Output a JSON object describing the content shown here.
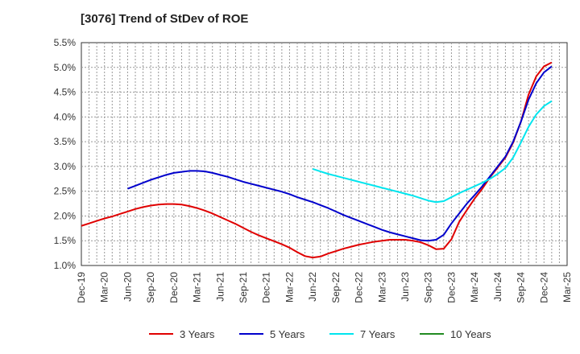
{
  "chart_data": {
    "type": "line",
    "title": "[3076]  Trend of StDev of ROE",
    "xlabel": "",
    "ylabel": "",
    "x_ticks": [
      "Dec-19",
      "Mar-20",
      "Jun-20",
      "Sep-20",
      "Dec-20",
      "Mar-21",
      "Jun-21",
      "Sep-21",
      "Dec-21",
      "Mar-22",
      "Jun-22",
      "Sep-22",
      "Dec-22",
      "Mar-23",
      "Jun-23",
      "Sep-23",
      "Dec-23",
      "Mar-24",
      "Jun-24",
      "Sep-24",
      "Dec-24",
      "Mar-25"
    ],
    "y_ticks": [
      "1.0%",
      "1.5%",
      "2.0%",
      "2.5%",
      "3.0%",
      "3.5%",
      "4.0%",
      "4.5%",
      "5.0%",
      "5.5%"
    ],
    "ylim": [
      1.0,
      5.5
    ],
    "grid": true,
    "legend_position": "bottom",
    "series": [
      {
        "name": "3 Years",
        "color": "#e00000",
        "points": [
          [
            "Dec-19",
            1.8
          ],
          [
            "Jan-20",
            1.85
          ],
          [
            "Feb-20",
            1.9
          ],
          [
            "Mar-20",
            1.95
          ],
          [
            "Apr-20",
            1.99
          ],
          [
            "May-20",
            2.04
          ],
          [
            "Jun-20",
            2.09
          ],
          [
            "Jul-20",
            2.14
          ],
          [
            "Aug-20",
            2.18
          ],
          [
            "Sep-20",
            2.21
          ],
          [
            "Oct-20",
            2.23
          ],
          [
            "Nov-20",
            2.24
          ],
          [
            "Dec-20",
            2.24
          ],
          [
            "Jan-21",
            2.23
          ],
          [
            "Feb-21",
            2.2
          ],
          [
            "Mar-21",
            2.16
          ],
          [
            "Apr-21",
            2.11
          ],
          [
            "May-21",
            2.05
          ],
          [
            "Jun-21",
            1.98
          ],
          [
            "Jul-21",
            1.91
          ],
          [
            "Aug-21",
            1.84
          ],
          [
            "Sep-21",
            1.76
          ],
          [
            "Oct-21",
            1.68
          ],
          [
            "Nov-21",
            1.61
          ],
          [
            "Dec-21",
            1.55
          ],
          [
            "Jan-22",
            1.49
          ],
          [
            "Feb-22",
            1.43
          ],
          [
            "Mar-22",
            1.36
          ],
          [
            "Apr-22",
            1.27
          ],
          [
            "May-22",
            1.19
          ],
          [
            "Jun-22",
            1.16
          ],
          [
            "Jul-22",
            1.18
          ],
          [
            "Aug-22",
            1.24
          ],
          [
            "Sep-22",
            1.29
          ],
          [
            "Oct-22",
            1.34
          ],
          [
            "Nov-22",
            1.38
          ],
          [
            "Dec-22",
            1.42
          ],
          [
            "Jan-23",
            1.45
          ],
          [
            "Feb-23",
            1.48
          ],
          [
            "Mar-23",
            1.5
          ],
          [
            "Apr-23",
            1.52
          ],
          [
            "May-23",
            1.52
          ],
          [
            "Jun-23",
            1.52
          ],
          [
            "Jul-23",
            1.5
          ],
          [
            "Aug-23",
            1.47
          ],
          [
            "Sep-23",
            1.41
          ],
          [
            "Oct-23",
            1.33
          ],
          [
            "Nov-23",
            1.34
          ],
          [
            "Dec-23",
            1.53
          ],
          [
            "Jan-24",
            1.88
          ],
          [
            "Feb-24",
            2.12
          ],
          [
            "Mar-24",
            2.35
          ],
          [
            "Apr-24",
            2.55
          ],
          [
            "May-24",
            2.78
          ],
          [
            "Jun-24",
            2.98
          ],
          [
            "Jul-24",
            3.18
          ],
          [
            "Aug-24",
            3.48
          ],
          [
            "Sep-24",
            3.9
          ],
          [
            "Oct-24",
            4.45
          ],
          [
            "Nov-24",
            4.82
          ],
          [
            "Dec-24",
            5.02
          ],
          [
            "Jan-25",
            5.1
          ]
        ]
      },
      {
        "name": "5 Years",
        "color": "#0000cc",
        "points": [
          [
            "Jun-20",
            2.55
          ],
          [
            "Jul-20",
            2.61
          ],
          [
            "Aug-20",
            2.67
          ],
          [
            "Sep-20",
            2.73
          ],
          [
            "Oct-20",
            2.78
          ],
          [
            "Nov-20",
            2.83
          ],
          [
            "Dec-20",
            2.87
          ],
          [
            "Jan-21",
            2.89
          ],
          [
            "Feb-21",
            2.91
          ],
          [
            "Mar-21",
            2.91
          ],
          [
            "Apr-21",
            2.9
          ],
          [
            "May-21",
            2.87
          ],
          [
            "Jun-21",
            2.83
          ],
          [
            "Jul-21",
            2.79
          ],
          [
            "Aug-21",
            2.74
          ],
          [
            "Sep-21",
            2.69
          ],
          [
            "Oct-21",
            2.65
          ],
          [
            "Nov-21",
            2.61
          ],
          [
            "Dec-21",
            2.57
          ],
          [
            "Jan-22",
            2.53
          ],
          [
            "Feb-22",
            2.49
          ],
          [
            "Mar-22",
            2.44
          ],
          [
            "Apr-22",
            2.38
          ],
          [
            "May-22",
            2.33
          ],
          [
            "Jun-22",
            2.28
          ],
          [
            "Jul-22",
            2.22
          ],
          [
            "Aug-22",
            2.16
          ],
          [
            "Sep-22",
            2.09
          ],
          [
            "Oct-22",
            2.02
          ],
          [
            "Nov-22",
            1.96
          ],
          [
            "Dec-22",
            1.9
          ],
          [
            "Jan-23",
            1.84
          ],
          [
            "Feb-23",
            1.78
          ],
          [
            "Mar-23",
            1.72
          ],
          [
            "Apr-23",
            1.67
          ],
          [
            "May-23",
            1.63
          ],
          [
            "Jun-23",
            1.59
          ],
          [
            "Jul-23",
            1.55
          ],
          [
            "Aug-23",
            1.51
          ],
          [
            "Sep-23",
            1.5
          ],
          [
            "Oct-23",
            1.52
          ],
          [
            "Nov-23",
            1.62
          ],
          [
            "Dec-23",
            1.85
          ],
          [
            "Jan-24",
            2.05
          ],
          [
            "Feb-24",
            2.25
          ],
          [
            "Mar-24",
            2.42
          ],
          [
            "Apr-24",
            2.6
          ],
          [
            "May-24",
            2.8
          ],
          [
            "Jun-24",
            3.0
          ],
          [
            "Jul-24",
            3.2
          ],
          [
            "Aug-24",
            3.5
          ],
          [
            "Sep-24",
            3.9
          ],
          [
            "Oct-24",
            4.35
          ],
          [
            "Nov-24",
            4.68
          ],
          [
            "Dec-24",
            4.9
          ],
          [
            "Jan-25",
            5.02
          ]
        ]
      },
      {
        "name": "7 Years",
        "color": "#00e5ee",
        "points": [
          [
            "Jun-22",
            2.95
          ],
          [
            "Jul-22",
            2.9
          ],
          [
            "Aug-22",
            2.85
          ],
          [
            "Sep-22",
            2.81
          ],
          [
            "Oct-22",
            2.77
          ],
          [
            "Nov-22",
            2.73
          ],
          [
            "Dec-22",
            2.69
          ],
          [
            "Jan-23",
            2.65
          ],
          [
            "Feb-23",
            2.61
          ],
          [
            "Mar-23",
            2.57
          ],
          [
            "Apr-23",
            2.53
          ],
          [
            "May-23",
            2.49
          ],
          [
            "Jun-23",
            2.45
          ],
          [
            "Jul-23",
            2.41
          ],
          [
            "Aug-23",
            2.36
          ],
          [
            "Sep-23",
            2.31
          ],
          [
            "Oct-23",
            2.28
          ],
          [
            "Nov-23",
            2.3
          ],
          [
            "Dec-23",
            2.38
          ],
          [
            "Jan-24",
            2.46
          ],
          [
            "Feb-24",
            2.53
          ],
          [
            "Mar-24",
            2.6
          ],
          [
            "Apr-24",
            2.67
          ],
          [
            "May-24",
            2.75
          ],
          [
            "Jun-24",
            2.85
          ],
          [
            "Jul-24",
            2.97
          ],
          [
            "Aug-24",
            3.18
          ],
          [
            "Sep-24",
            3.48
          ],
          [
            "Oct-24",
            3.8
          ],
          [
            "Nov-24",
            4.05
          ],
          [
            "Dec-24",
            4.22
          ],
          [
            "Jan-25",
            4.32
          ]
        ]
      },
      {
        "name": "10 Years",
        "color": "#228b22",
        "points": []
      }
    ]
  }
}
